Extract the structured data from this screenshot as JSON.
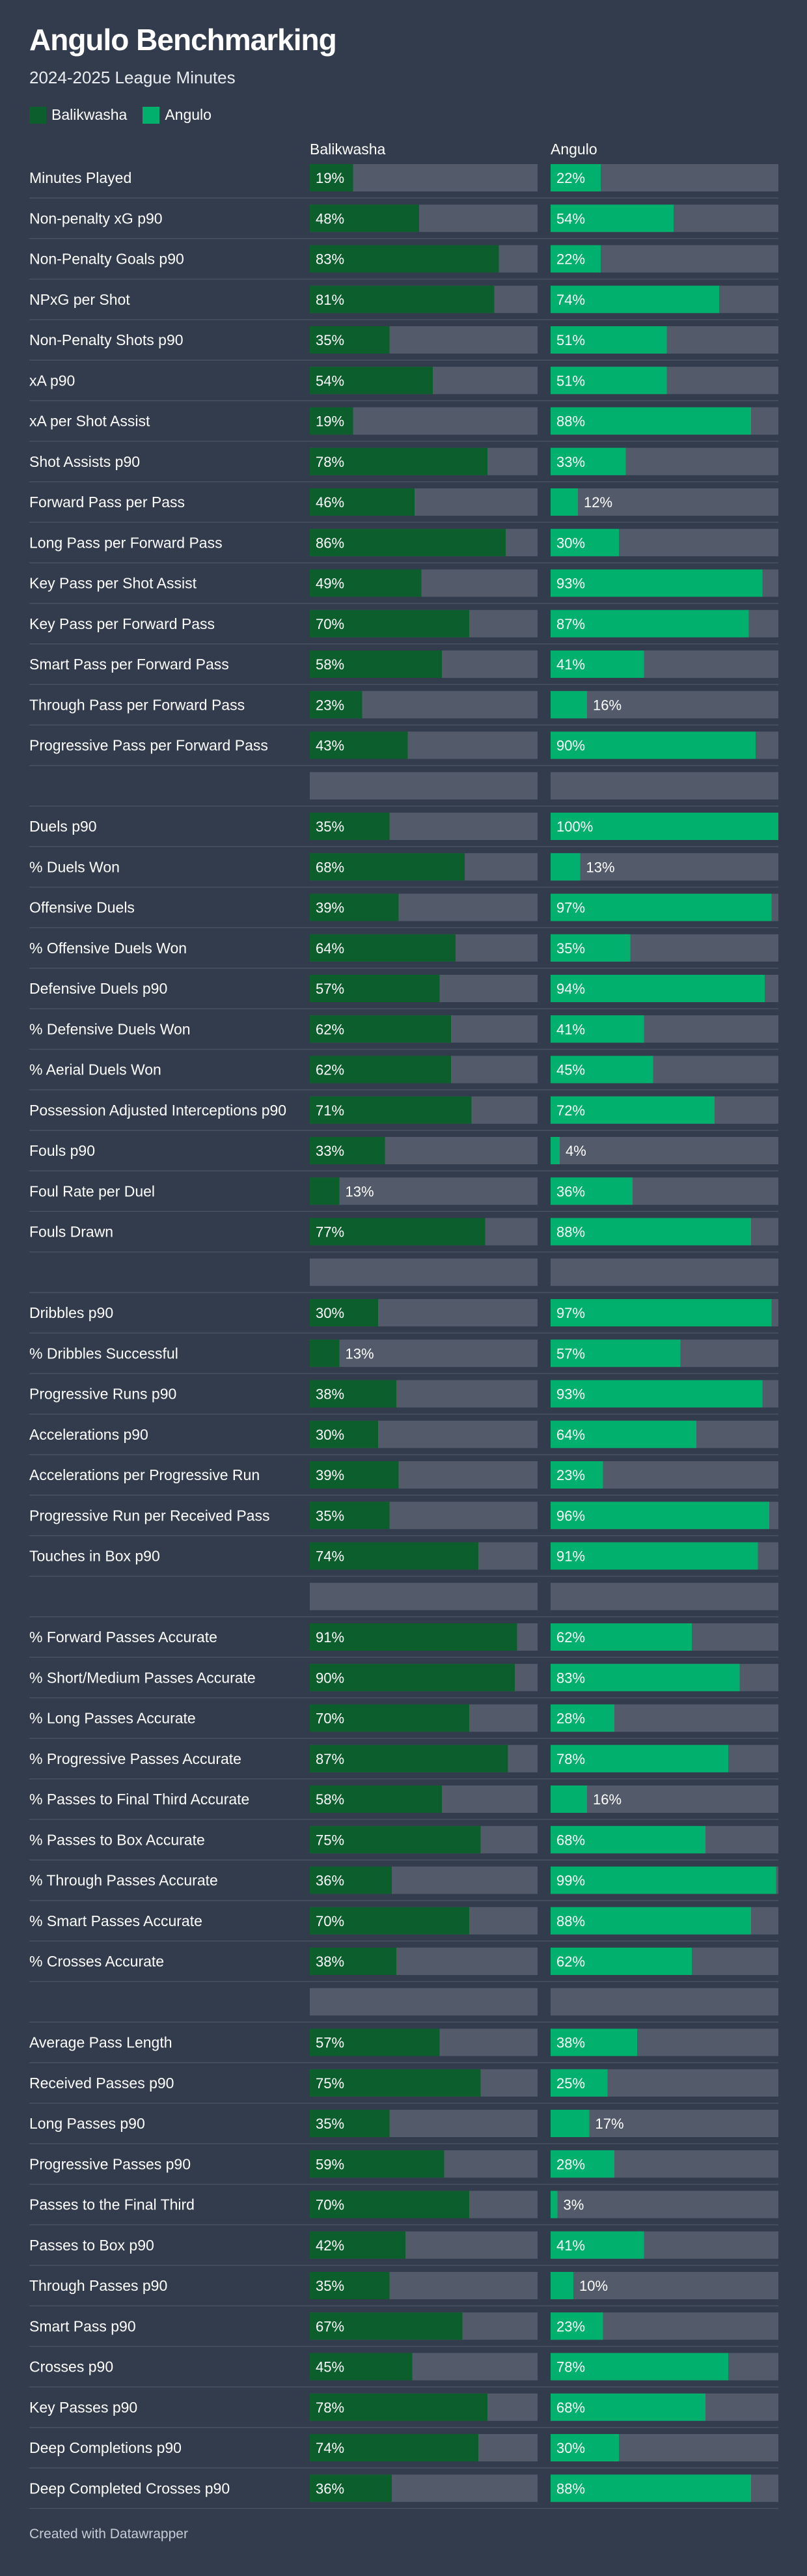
{
  "colors": {
    "background": "#333c4c",
    "track": "#535b6b",
    "balikwasha": "#0c5e2d",
    "angulo": "#00b06c",
    "divider": "#4a5262"
  },
  "title": "Angulo Benchmarking",
  "subtitle": "2024-2025 League Minutes",
  "legend": [
    {
      "label": "Balikwasha",
      "color": "#0c5e2d"
    },
    {
      "label": "Angulo",
      "color": "#00b06c"
    }
  ],
  "footer": "Created with Datawrapper",
  "chart_data": {
    "type": "bar",
    "orientation": "horizontal",
    "xlim": [
      0,
      100
    ],
    "unit": "%",
    "categories": [
      "Minutes Played",
      "Non-penalty xG p90",
      "Non-Penalty Goals p90",
      "NPxG per Shot",
      "Non-Penalty Shots p90",
      "xA p90",
      "xA per Shot Assist",
      "Shot Assists p90",
      "Forward Pass per Pass",
      "Long Pass per Forward Pass",
      "Key Pass per Shot Assist",
      "Key Pass per Forward Pass",
      "Smart Pass per Forward Pass",
      "Through Pass per Forward Pass",
      "Progressive Pass per Forward Pass",
      "",
      "Duels p90",
      "% Duels Won",
      "Offensive Duels",
      "% Offensive Duels Won",
      "Defensive Duels p90",
      "% Defensive Duels Won",
      "% Aerial Duels Won",
      "Possession Adjusted Interceptions p90",
      "Fouls p90",
      "Foul Rate per Duel",
      "Fouls Drawn",
      "",
      "Dribbles p90",
      "% Dribbles Successful",
      "Progressive Runs p90",
      "Accelerations p90",
      "Accelerations per Progressive Run",
      "Progressive Run per Received Pass",
      "Touches in Box p90",
      "",
      "% Forward Passes Accurate",
      "% Short/Medium Passes Accurate",
      "% Long Passes Accurate",
      "% Progressive Passes Accurate",
      "% Passes to Final Third Accurate",
      "% Passes to Box Accurate",
      "% Through Passes Accurate",
      "% Smart Passes Accurate",
      "% Crosses Accurate",
      "",
      "Average Pass Length",
      "Received Passes p90",
      "Long Passes p90",
      "Progressive Passes p90",
      "Passes to the Final Third",
      "Passes to Box p90",
      "Through Passes p90",
      "Smart Pass p90",
      "Crosses p90",
      "Key Passes p90",
      "Deep Completions p90",
      "Deep Completed Crosses p90"
    ],
    "series": [
      {
        "name": "Balikwasha",
        "values": [
          19,
          48,
          83,
          81,
          35,
          54,
          19,
          78,
          46,
          86,
          49,
          70,
          58,
          23,
          43,
          null,
          35,
          68,
          39,
          64,
          57,
          62,
          62,
          71,
          33,
          13,
          77,
          null,
          30,
          13,
          38,
          30,
          39,
          35,
          74,
          null,
          91,
          90,
          70,
          87,
          58,
          75,
          36,
          70,
          38,
          null,
          57,
          75,
          35,
          59,
          70,
          42,
          35,
          67,
          45,
          78,
          74,
          36
        ]
      },
      {
        "name": "Angulo",
        "values": [
          22,
          54,
          22,
          74,
          51,
          51,
          88,
          33,
          12,
          30,
          93,
          87,
          41,
          16,
          90,
          null,
          100,
          13,
          97,
          35,
          94,
          41,
          45,
          72,
          4,
          36,
          88,
          null,
          97,
          57,
          93,
          64,
          23,
          96,
          91,
          null,
          62,
          83,
          28,
          78,
          16,
          68,
          99,
          88,
          62,
          null,
          38,
          25,
          17,
          28,
          3,
          41,
          10,
          23,
          78,
          68,
          30,
          88
        ]
      }
    ]
  }
}
